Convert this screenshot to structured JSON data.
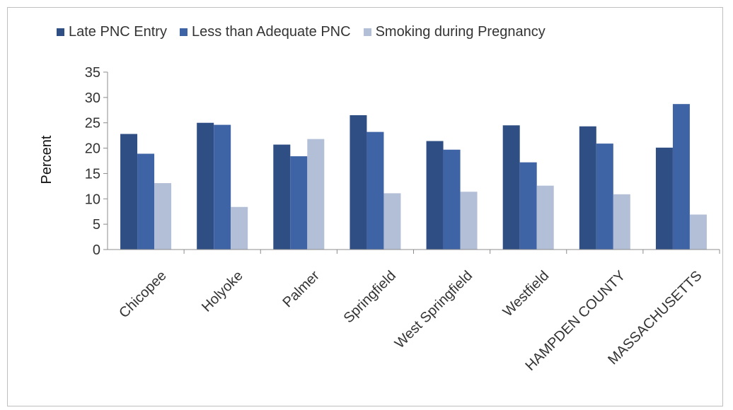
{
  "chart_data": {
    "type": "bar",
    "title": "",
    "xlabel": "",
    "ylabel": "Percent",
    "ylim": [
      0,
      35
    ],
    "yticks": [
      0,
      5,
      10,
      15,
      20,
      25,
      30,
      35
    ],
    "grid": false,
    "legend_position": "top",
    "categories": [
      "Chicopee",
      "Holyoke",
      "Palmer",
      "Springfield",
      "West Springfield",
      "Westfield",
      "HAMPDEN COUNTY",
      "MASSACHUSETTS"
    ],
    "series": [
      {
        "name": "Late PNC Entry",
        "color": "#2f4f84",
        "values": [
          22.8,
          25.0,
          20.7,
          26.5,
          21.4,
          24.5,
          24.3,
          20.1
        ]
      },
      {
        "name": "Less than Adequate PNC",
        "color": "#3f64a6",
        "values": [
          18.9,
          24.6,
          18.4,
          23.2,
          19.7,
          17.2,
          20.9,
          28.7
        ]
      },
      {
        "name": "Smoking during Pregnancy",
        "color": "#b3bfd6",
        "values": [
          13.1,
          8.4,
          21.8,
          11.1,
          11.4,
          12.6,
          10.9,
          6.9
        ]
      }
    ]
  }
}
